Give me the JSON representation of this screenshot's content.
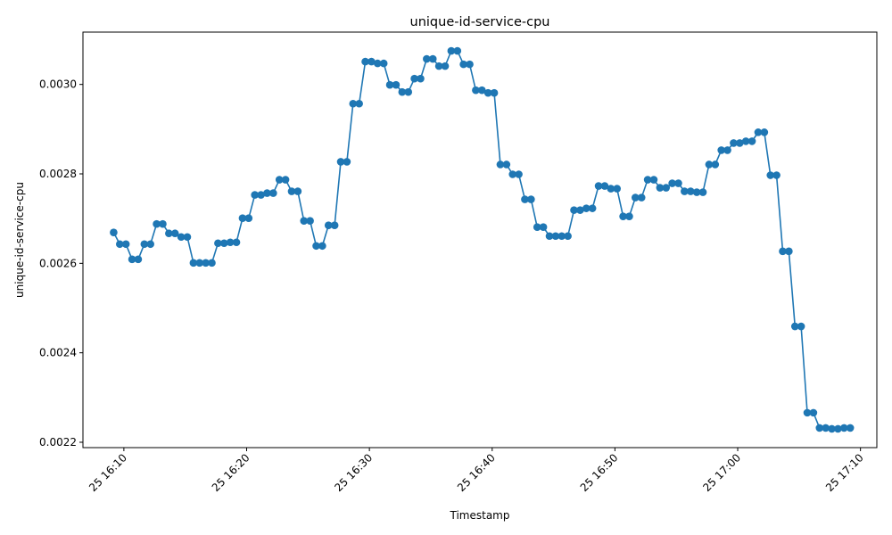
{
  "chart_data": {
    "type": "line",
    "title": "unique-id-service-cpu",
    "xlabel": "Timestamp",
    "ylabel": "unique-id-service-cpu",
    "x_start": "25 16:09:10",
    "x_step_seconds": 30,
    "xlim": [
      "25 16:06:40",
      "25 17:11:20"
    ],
    "ylim": [
      0.002188,
      0.003117
    ],
    "x_ticks": [
      {
        "label": "25 16:10",
        "time": "25 16:10"
      },
      {
        "label": "25 16:20",
        "time": "25 16:20"
      },
      {
        "label": "25 16:30",
        "time": "25 16:30"
      },
      {
        "label": "25 16:40",
        "time": "25 16:40"
      },
      {
        "label": "25 16:50",
        "time": "25 16:50"
      },
      {
        "label": "25 17:00",
        "time": "25 17:00"
      },
      {
        "label": "25 17:10",
        "time": "25 17:10"
      }
    ],
    "y_ticks": [
      {
        "label": "0.0022",
        "value": 0.0022
      },
      {
        "label": "0.0024",
        "value": 0.0024
      },
      {
        "label": "0.0026",
        "value": 0.0026
      },
      {
        "label": "0.0028",
        "value": 0.0028
      },
      {
        "label": "0.0030",
        "value": 0.003
      }
    ],
    "grid": false,
    "marker": "circle",
    "color": "#1f77b4",
    "series": [
      {
        "values": [
          0.002669,
          0.002643,
          0.002643,
          0.002609,
          0.002609,
          0.002643,
          0.002643,
          0.002688,
          0.002688,
          0.002667,
          0.002667,
          0.002659,
          0.002659,
          0.002601,
          0.002601,
          0.002601,
          0.002601,
          0.002645,
          0.002645,
          0.002647,
          0.002647,
          0.002701,
          0.002701,
          0.002753,
          0.002753,
          0.002757,
          0.002757,
          0.002787,
          0.002787,
          0.002761,
          0.002761,
          0.002695,
          0.002695,
          0.002639,
          0.002639,
          0.002685,
          0.002685,
          0.002827,
          0.002827,
          0.002957,
          0.002957,
          0.003051,
          0.003051,
          0.003047,
          0.003047,
          0.002999,
          0.002999,
          0.002983,
          0.002983,
          0.003013,
          0.003013,
          0.003057,
          0.003057,
          0.003041,
          0.003041,
          0.003075,
          0.003075,
          0.003045,
          0.003045,
          0.002987,
          0.002987,
          0.002981,
          0.002981,
          0.002821,
          0.002821,
          0.002799,
          0.002799,
          0.002743,
          0.002743,
          0.002681,
          0.002681,
          0.002661,
          0.002661,
          0.002661,
          0.002661,
          0.002719,
          0.002719,
          0.002723,
          0.002723,
          0.002773,
          0.002773,
          0.002767,
          0.002767,
          0.002705,
          0.002705,
          0.002747,
          0.002747,
          0.002787,
          0.002787,
          0.002769,
          0.002769,
          0.002779,
          0.002779,
          0.002761,
          0.002761,
          0.002759,
          0.002759,
          0.002821,
          0.002821,
          0.002853,
          0.002853,
          0.002869,
          0.002869,
          0.002873,
          0.002873,
          0.002893,
          0.002893,
          0.002797,
          0.002797,
          0.002627,
          0.002627,
          0.002459,
          0.002459,
          0.002266,
          0.002266,
          0.002232,
          0.002232,
          0.00223,
          0.00223,
          0.002232,
          0.002232
        ]
      }
    ]
  }
}
